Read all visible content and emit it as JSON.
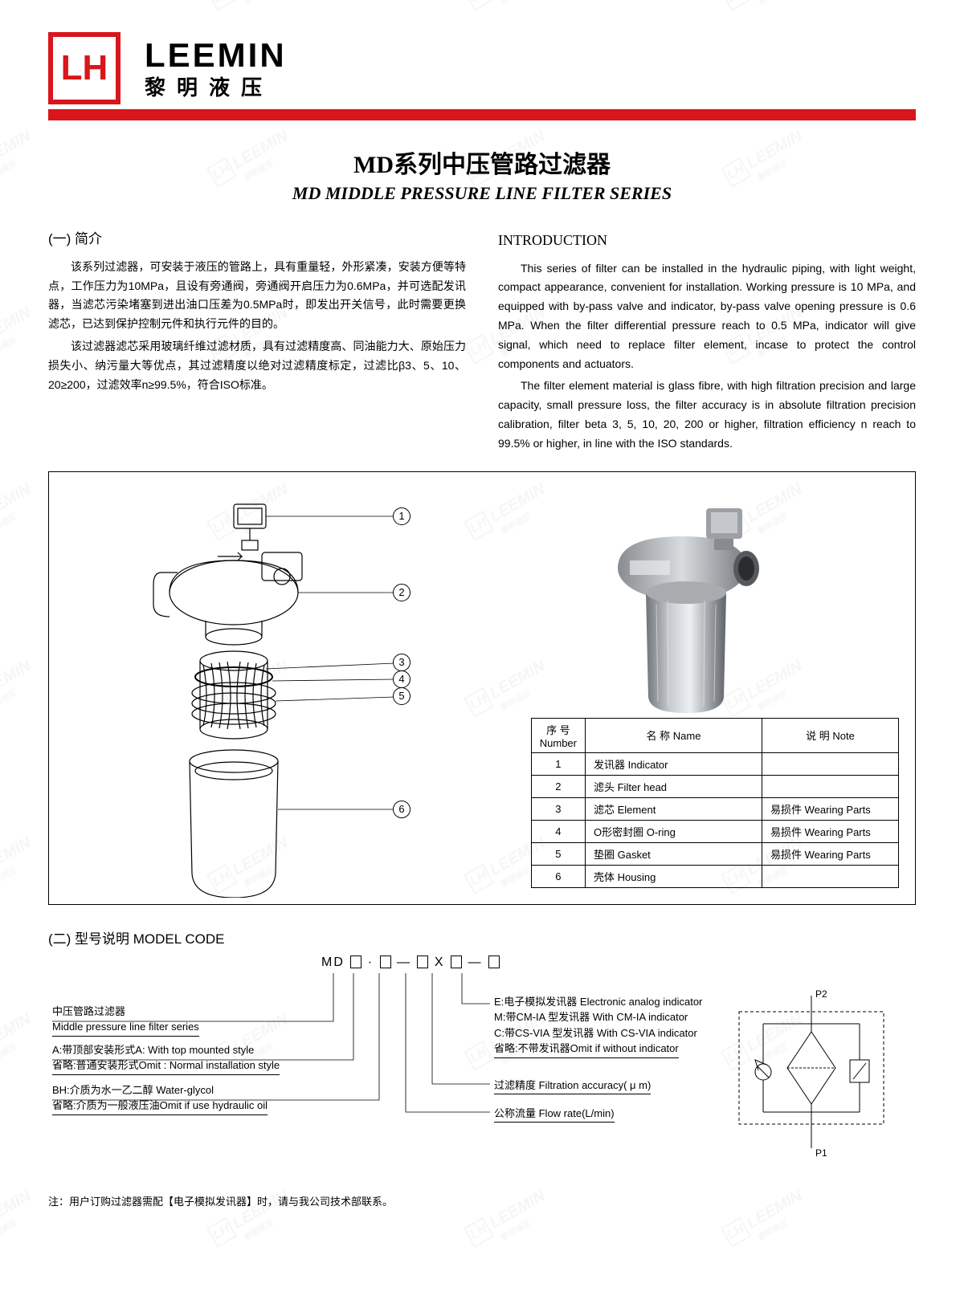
{
  "brand": {
    "logo_text": "LH",
    "en": "LEEMIN",
    "cn": "黎明液压"
  },
  "title": {
    "cn": "MD系列中压管路过滤器",
    "en": "MD MIDDLE PRESSURE LINE FILTER SERIES"
  },
  "intro_cn": {
    "heading": "(一) 简介",
    "p1": "该系列过滤器，可安装于液压的管路上，具有重量轻，外形紧凑，安装方便等特点，工作压力为10MPa，且设有旁通阀，旁通阀开启压力为0.6MPa，并可选配发讯器，当滤芯污染堵塞到进出油口压差为0.5MPa时，即发出开关信号，此时需要更换滤芯，已达到保护控制元件和执行元件的目的。",
    "p2": "该过滤器滤芯采用玻璃纤维过滤材质，具有过滤精度高、同油能力大、原始压力损失小、纳污量大等优点，其过滤精度以绝对过滤精度标定，过滤比β3、5、10、20≥200，过滤效率n≥99.5%，符合ISO标准。"
  },
  "intro_en": {
    "heading": "INTRODUCTION",
    "p1": "This series of filter can be installed in the hydraulic piping, with light weight, compact appearance, convenient for installation. Working pressure is 10 MPa, and equipped with by-pass valve and indicator, by-pass valve opening pressure is 0.6 MPa. When the filter differential pressure reach to 0.5 MPa, indicator will give signal, which need to replace filter element, incase to protect the control components and actuators.",
    "p2": "The filter element material is glass fibre, with high filtration precision and large capacity, small pressure loss, the filter accuracy is in absolute filtration precision calibration, filter beta 3, 5, 10, 20, 200 or higher, filtration efficiency n reach to 99.5% or higher, in line with the ISO standards."
  },
  "parts_table": {
    "headers": {
      "num": "序 号\nNumber",
      "name": "名 称 Name",
      "note": "说 明 Note"
    },
    "rows": [
      {
        "num": "1",
        "name": "发讯器  Indicator",
        "note": ""
      },
      {
        "num": "2",
        "name": "滤头  Filter head",
        "note": ""
      },
      {
        "num": "3",
        "name": "滤芯  Element",
        "note": "易损件 Wearing Parts"
      },
      {
        "num": "4",
        "name": "O形密封圈  O-ring",
        "note": "易损件 Wearing Parts"
      },
      {
        "num": "5",
        "name": "垫圈 Gasket",
        "note": "易损件 Wearing Parts"
      },
      {
        "num": "6",
        "name": "壳体 Housing",
        "note": ""
      }
    ]
  },
  "model_code": {
    "heading": "(二) 型号说明 MODEL CODE",
    "prefix": "MD",
    "left": [
      {
        "l1": "中压管路过滤器",
        "l2": "Middle pressure line filter series"
      },
      {
        "l1": "A:带顶部安装形式A: With top mounted style",
        "l2": "省略:普通安装形式Omit : Normal installation style"
      },
      {
        "l1": "BH:介质为水一乙二醇 Water-glycol",
        "l2": "省略:介质为一般液压油Omit if use hydraulic oil"
      }
    ],
    "right": [
      {
        "l1": "E:电子模拟发讯器  Electronic analog indicator",
        "l2": "M:带CM-IA 型发讯器 With CM-IA indicator",
        "l3": "C:带CS-VIA 型发讯器 With CS-VIA indicator",
        "l4": "省略:不带发讯器Omit if without indicator"
      },
      {
        "l1": "过滤精度 Filtration accuracy( μ m)"
      },
      {
        "l1": "公称流量 Flow rate(L/min)"
      }
    ],
    "note": "注：用户订购过滤器需配【电子模拟发讯器】时，请与我公司技术部联系。"
  },
  "schematic_labels": {
    "p1": "P1",
    "p2": "P2"
  }
}
